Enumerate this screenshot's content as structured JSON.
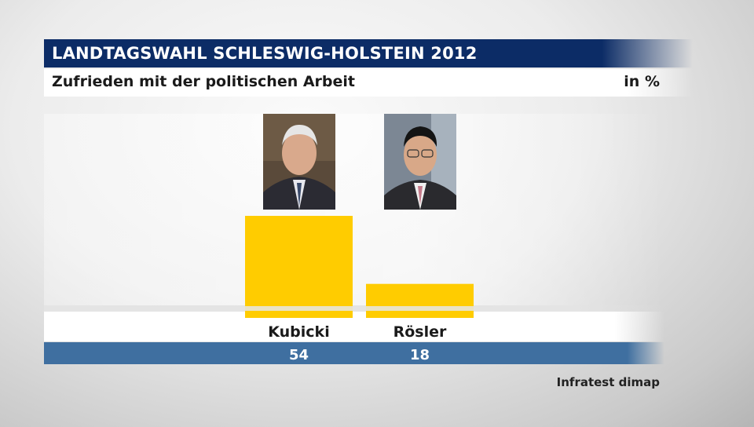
{
  "header": {
    "title": "LANDTAGSWAHL SCHLESWIG-HOLSTEIN 2012",
    "subtitle": "Zufrieden mit der politischen Arbeit",
    "unit": "in %"
  },
  "source": "Infratest dimap",
  "colors": {
    "bar": "#ffcc00",
    "title_bg": "#0c2c66",
    "value_band": "#3f6fa0"
  },
  "chart_data": {
    "type": "bar",
    "categories": [
      "Kubicki",
      "Rösler"
    ],
    "values": [
      54,
      18
    ],
    "title": "LANDTAGSWAHL SCHLESWIG-HOLSTEIN 2012",
    "subtitle": "Zufrieden mit der politischen Arbeit",
    "ylabel": "in %",
    "grid": false,
    "data_labels": [
      "54",
      "18"
    ]
  },
  "portraits": [
    {
      "name": "Kubicki"
    },
    {
      "name": "Rösler"
    }
  ]
}
